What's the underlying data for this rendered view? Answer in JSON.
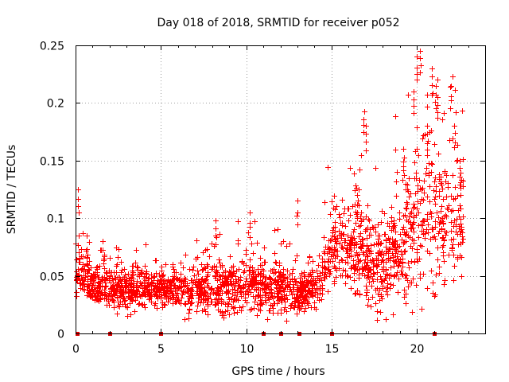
{
  "chart_data": {
    "type": "scatter",
    "marker": "plus",
    "title": "Day 018 of 2018, SRMTID for receiver p052",
    "xlabel": "GPS time / hours",
    "ylabel": "SRMTID / TECUs",
    "xlim": [
      0,
      24
    ],
    "ylim": [
      0,
      0.25
    ],
    "x_ticks": [
      0,
      5,
      10,
      15,
      20
    ],
    "x_tick_labels": [
      "0",
      "5",
      "10",
      "15",
      "20"
    ],
    "y_ticks": [
      0,
      0.05,
      0.1,
      0.15,
      0.2,
      0.25
    ],
    "y_tick_labels": [
      "0",
      "0.05",
      "0.1",
      "0.15",
      "0.2",
      "0.25"
    ],
    "grid": true,
    "series_color": "#ff0000",
    "gap_markers_x": [
      0.1,
      2.0,
      5.0,
      11.0,
      12.0,
      13.1,
      15.0,
      21.0
    ],
    "profile": {
      "x_hours": [
        0.0,
        0.2,
        0.5,
        1.0,
        2.0,
        3.0,
        4.0,
        5.0,
        6.0,
        7.0,
        8.0,
        9.0,
        10.0,
        11.0,
        12.0,
        13.0,
        14.0,
        14.5,
        15.0,
        16.0,
        17.0,
        18.0,
        19.0,
        19.5,
        20.0,
        20.5,
        21.0,
        21.5,
        22.0,
        22.7
      ],
      "median_tecu": [
        0.045,
        0.06,
        0.05,
        0.042,
        0.04,
        0.038,
        0.042,
        0.038,
        0.04,
        0.036,
        0.042,
        0.04,
        0.044,
        0.04,
        0.038,
        0.036,
        0.04,
        0.05,
        0.07,
        0.075,
        0.062,
        0.058,
        0.07,
        0.09,
        0.1,
        0.12,
        0.1,
        0.09,
        0.1,
        0.1
      ],
      "spread_tecu": [
        0.01,
        0.015,
        0.012,
        0.011,
        0.011,
        0.011,
        0.012,
        0.011,
        0.012,
        0.012,
        0.016,
        0.016,
        0.018,
        0.015,
        0.013,
        0.013,
        0.014,
        0.017,
        0.02,
        0.025,
        0.028,
        0.025,
        0.03,
        0.04,
        0.045,
        0.05,
        0.045,
        0.035,
        0.035,
        0.03
      ]
    },
    "notable_peaks": [
      {
        "x": 0.15,
        "y": 0.125
      },
      {
        "x": 1.6,
        "y": 0.08
      },
      {
        "x": 8.2,
        "y": 0.098
      },
      {
        "x": 10.2,
        "y": 0.105
      },
      {
        "x": 13.0,
        "y": 0.115
      },
      {
        "x": 16.5,
        "y": 0.12
      },
      {
        "x": 16.9,
        "y": 0.193
      },
      {
        "x": 17.0,
        "y": 0.18
      },
      {
        "x": 18.5,
        "y": 0.11
      },
      {
        "x": 19.2,
        "y": 0.16
      },
      {
        "x": 19.8,
        "y": 0.21
      },
      {
        "x": 20.0,
        "y": 0.24
      },
      {
        "x": 20.2,
        "y": 0.245
      },
      {
        "x": 20.6,
        "y": 0.18
      },
      {
        "x": 20.9,
        "y": 0.23
      },
      {
        "x": 21.1,
        "y": 0.215
      },
      {
        "x": 21.2,
        "y": 0.205
      },
      {
        "x": 22.0,
        "y": 0.215
      },
      {
        "x": 22.2,
        "y": 0.18
      },
      {
        "x": 22.5,
        "y": 0.15
      }
    ]
  }
}
